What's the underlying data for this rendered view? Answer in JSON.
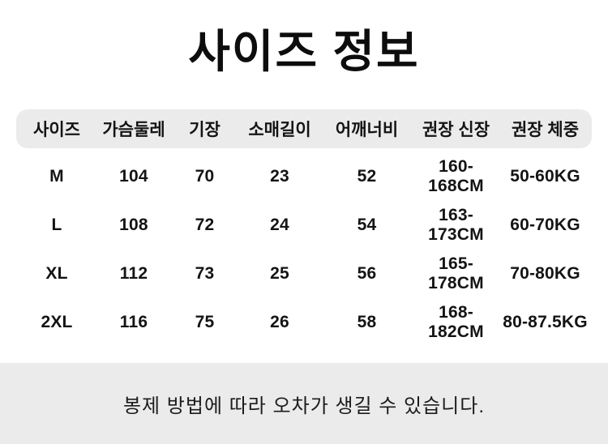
{
  "page": {
    "background_color": "#ffffff",
    "band_color": "#ebebeb",
    "text_color": "#141414"
  },
  "title": "사이즈 정보",
  "table": {
    "columns": [
      "사이즈",
      "가슴둘레",
      "기장",
      "소매길이",
      "어깨너비",
      "권장 신장",
      "권장 체중"
    ],
    "rows": [
      [
        "M",
        "104",
        "70",
        "23",
        "52",
        "160-168CM",
        "50-60KG"
      ],
      [
        "L",
        "108",
        "72",
        "24",
        "54",
        "163-173CM",
        "60-70KG"
      ],
      [
        "XL",
        "112",
        "73",
        "25",
        "56",
        "165-178CM",
        "70-80KG"
      ],
      [
        "2XL",
        "116",
        "75",
        "26",
        "58",
        "168-182CM",
        "80-87.5KG"
      ]
    ]
  },
  "note": "봉제 방법에 따라 오차가 생길 수 있습니다."
}
